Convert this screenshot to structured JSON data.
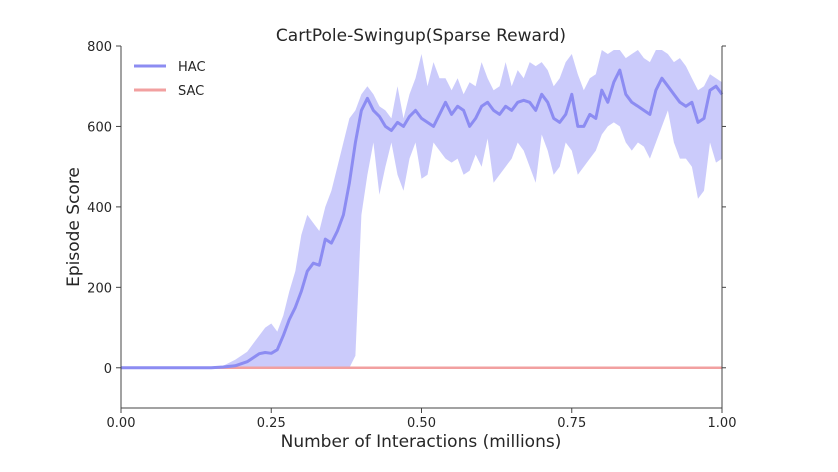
{
  "chart_data": {
    "type": "line",
    "title": "CartPole-Swingup(Sparse Reward)",
    "xlabel": "Number of Interactions (millions)",
    "ylabel": "Episode Score",
    "xlim": [
      0.0,
      1.0
    ],
    "ylim": [
      -100,
      800
    ],
    "x_ticks": [
      0.0,
      0.25,
      0.5,
      0.75,
      1.0
    ],
    "x_tick_labels": [
      "0.00",
      "0.25",
      "0.50",
      "0.75",
      "1.00"
    ],
    "y_ticks": [
      0,
      200,
      400,
      600,
      800
    ],
    "y_tick_labels": [
      "0",
      "200",
      "400",
      "600",
      "800"
    ],
    "legend_position": "top-left",
    "grid": false,
    "series": [
      {
        "name": "HAC",
        "color": "#8c8cf2",
        "band_color": "#a8a8f8",
        "x": [
          0.0,
          0.05,
          0.1,
          0.15,
          0.17,
          0.19,
          0.21,
          0.22,
          0.23,
          0.24,
          0.25,
          0.26,
          0.27,
          0.28,
          0.29,
          0.3,
          0.31,
          0.32,
          0.33,
          0.34,
          0.35,
          0.36,
          0.37,
          0.38,
          0.39,
          0.4,
          0.41,
          0.42,
          0.43,
          0.44,
          0.45,
          0.46,
          0.47,
          0.48,
          0.49,
          0.5,
          0.51,
          0.52,
          0.53,
          0.54,
          0.55,
          0.56,
          0.57,
          0.58,
          0.59,
          0.6,
          0.61,
          0.62,
          0.63,
          0.64,
          0.65,
          0.66,
          0.67,
          0.68,
          0.69,
          0.7,
          0.71,
          0.72,
          0.73,
          0.74,
          0.75,
          0.76,
          0.77,
          0.78,
          0.79,
          0.8,
          0.81,
          0.82,
          0.83,
          0.84,
          0.85,
          0.86,
          0.87,
          0.88,
          0.89,
          0.9,
          0.91,
          0.92,
          0.93,
          0.94,
          0.95,
          0.96,
          0.97,
          0.98,
          0.99,
          1.0
        ],
        "values": [
          0,
          0,
          0,
          0,
          2,
          5,
          15,
          25,
          35,
          38,
          36,
          45,
          80,
          120,
          150,
          190,
          240,
          260,
          255,
          320,
          310,
          340,
          380,
          460,
          560,
          640,
          670,
          640,
          625,
          600,
          590,
          610,
          600,
          625,
          640,
          620,
          610,
          600,
          630,
          660,
          630,
          650,
          640,
          600,
          620,
          650,
          660,
          640,
          630,
          650,
          640,
          660,
          665,
          660,
          640,
          680,
          660,
          620,
          610,
          630,
          680,
          600,
          600,
          630,
          620,
          690,
          660,
          710,
          740,
          680,
          660,
          650,
          640,
          630,
          690,
          720,
          700,
          680,
          660,
          650,
          660,
          610,
          620,
          690,
          700,
          680
        ],
        "upper": [
          0,
          0,
          0,
          0,
          5,
          20,
          40,
          60,
          80,
          100,
          110,
          90,
          130,
          190,
          240,
          330,
          380,
          360,
          340,
          400,
          440,
          500,
          560,
          620,
          640,
          680,
          700,
          680,
          650,
          640,
          620,
          700,
          620,
          680,
          720,
          780,
          700,
          760,
          720,
          720,
          690,
          720,
          680,
          710,
          700,
          760,
          720,
          690,
          700,
          760,
          700,
          740,
          720,
          760,
          750,
          760,
          740,
          700,
          720,
          760,
          780,
          730,
          690,
          720,
          730,
          790,
          780,
          790,
          790,
          770,
          780,
          790,
          770,
          760,
          790,
          790,
          780,
          760,
          770,
          750,
          720,
          690,
          700,
          730,
          720,
          710
        ],
        "lower": [
          0,
          0,
          0,
          0,
          0,
          0,
          0,
          0,
          0,
          0,
          0,
          0,
          0,
          0,
          0,
          0,
          0,
          0,
          0,
          0,
          0,
          0,
          0,
          0,
          30,
          380,
          480,
          560,
          430,
          500,
          560,
          480,
          440,
          520,
          560,
          470,
          480,
          560,
          540,
          520,
          510,
          520,
          480,
          490,
          530,
          500,
          570,
          460,
          480,
          500,
          520,
          560,
          540,
          500,
          460,
          580,
          540,
          480,
          500,
          560,
          540,
          480,
          500,
          520,
          540,
          580,
          600,
          610,
          600,
          560,
          540,
          560,
          550,
          520,
          560,
          600,
          640,
          560,
          520,
          520,
          500,
          420,
          440,
          560,
          510,
          520
        ]
      },
      {
        "name": "SAC",
        "color": "#f2a0a0",
        "x": [
          0.0,
          1.0
        ],
        "values": [
          0,
          0
        ]
      }
    ]
  }
}
